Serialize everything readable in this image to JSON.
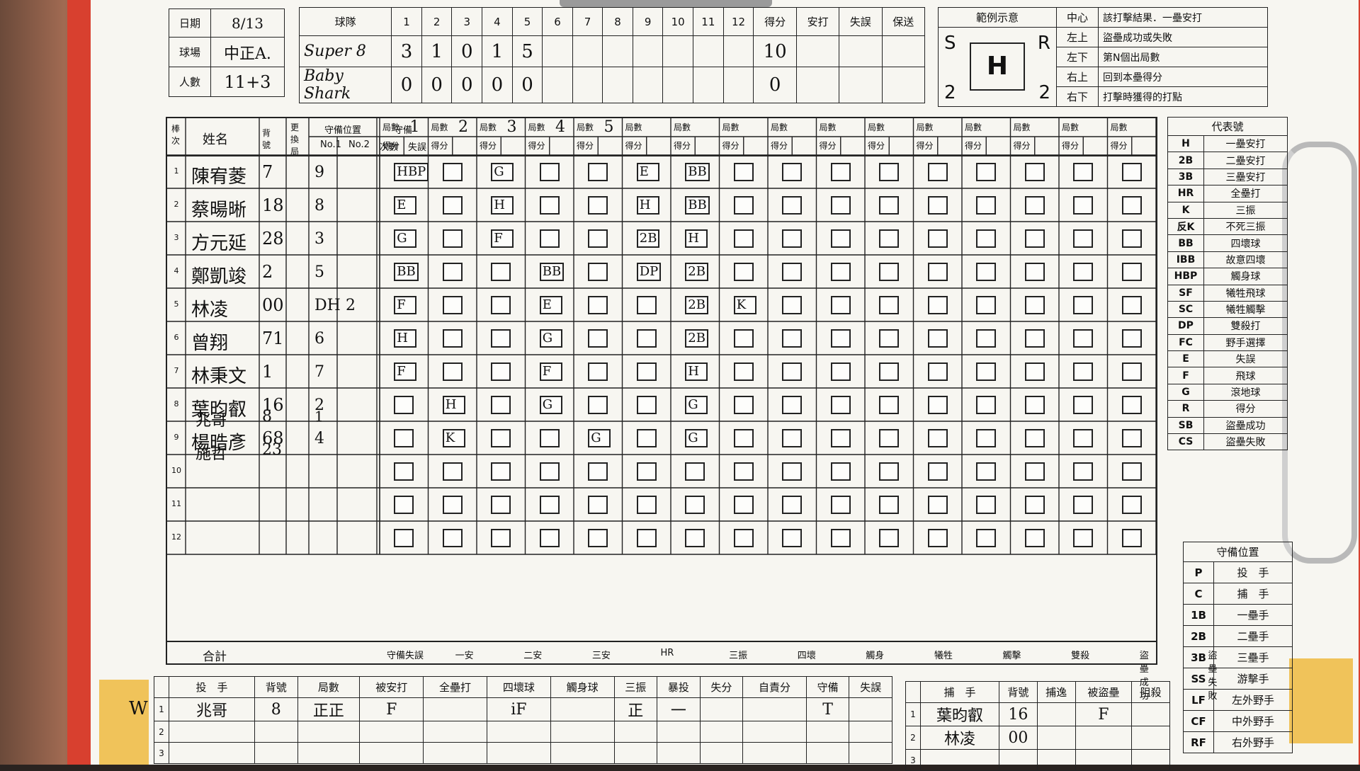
{
  "header": {
    "date_label": "日期",
    "date_value": "8/13",
    "venue_label": "球場",
    "venue_value": "中正A.",
    "people_label": "人數",
    "people_value": "11+3"
  },
  "linescore": {
    "team_label": "球隊",
    "innings": [
      "1",
      "2",
      "3",
      "4",
      "5",
      "6",
      "7",
      "8",
      "9",
      "10",
      "11",
      "12"
    ],
    "extra_headers": [
      "得分",
      "安打",
      "失誤",
      "保送"
    ],
    "teams": [
      {
        "name": "Super 8",
        "runs": [
          "3",
          "1",
          "0",
          "1",
          "5"
        ],
        "total": "10"
      },
      {
        "name": "Baby Shark",
        "runs": [
          "0",
          "0",
          "0",
          "0",
          "0"
        ],
        "total": "0"
      }
    ]
  },
  "legend": {
    "title": "範例示意",
    "sample": {
      "s": "S",
      "r": "R",
      "h": "H",
      "bl": "2",
      "br": "2"
    },
    "rows": [
      {
        "k": "中心",
        "v": "該打擊結果．一壘安打"
      },
      {
        "k": "左上",
        "v": "盜壘成功或失敗"
      },
      {
        "k": "左下",
        "v": "第N個出局數"
      },
      {
        "k": "右上",
        "v": "回到本壘得分"
      },
      {
        "k": "右下",
        "v": "打擊時獲得的打點"
      }
    ]
  },
  "lineup_header": {
    "order": "棒次",
    "name": "姓名",
    "number": "背號",
    "sub": "更換局",
    "pos": "守備位置",
    "pos1": "No.1",
    "pos2": "No.2",
    "def": "守備",
    "def_count": "次數",
    "def_err": "失誤",
    "inning_label": "局數",
    "score_label": "得分"
  },
  "players": [
    {
      "order": "1",
      "name": "陳宥菱",
      "num": "7",
      "pos": "9",
      "pos2": ""
    },
    {
      "order": "2",
      "name": "蔡暘晰",
      "num": "18",
      "pos": "8",
      "pos2": ""
    },
    {
      "order": "3",
      "name": "方元延",
      "num": "28",
      "pos": "3",
      "pos2": ""
    },
    {
      "order": "4",
      "name": "鄭凱竣",
      "num": "2",
      "pos": "5",
      "pos2": ""
    },
    {
      "order": "5",
      "name": "林凌",
      "num": "00",
      "pos": "DH",
      "pos2": "2"
    },
    {
      "order": "6",
      "name": "曾翔",
      "num": "71",
      "pos": "6",
      "pos2": ""
    },
    {
      "order": "7",
      "name": "林秉文",
      "num": "1",
      "pos": "7",
      "pos2": ""
    },
    {
      "order": "8",
      "name": "葉昀叡",
      "num": "16",
      "pos": "2",
      "pos2": ""
    },
    {
      "order": "9",
      "name": "楊晧彥",
      "num": "68",
      "pos": "4",
      "pos2": ""
    },
    {
      "order": "10",
      "name": "",
      "num": "",
      "pos": "",
      "pos2": ""
    },
    {
      "order": "11",
      "name": "",
      "num": "",
      "pos": "",
      "pos2": ""
    },
    {
      "order": "12",
      "name": "",
      "num": "",
      "pos": "",
      "pos2": ""
    }
  ],
  "subs": [
    {
      "name": "兆哥",
      "num": "8",
      "pos": "1"
    },
    {
      "name": "施哲",
      "num": "23",
      "pos": ""
    }
  ],
  "inning_marks": [
    "1",
    "2",
    "3",
    "4",
    "5"
  ],
  "results": [
    {
      "row": 0,
      "col": 0,
      "t": "HBP"
    },
    {
      "row": 0,
      "col": 2,
      "t": "G"
    },
    {
      "row": 0,
      "col": 5,
      "t": "E"
    },
    {
      "row": 0,
      "col": 6,
      "t": "BB"
    },
    {
      "row": 1,
      "col": 0,
      "t": "E"
    },
    {
      "row": 1,
      "col": 2,
      "t": "H"
    },
    {
      "row": 1,
      "col": 5,
      "t": "H"
    },
    {
      "row": 1,
      "col": 6,
      "t": "BB"
    },
    {
      "row": 2,
      "col": 0,
      "t": "G"
    },
    {
      "row": 2,
      "col": 2,
      "t": "F"
    },
    {
      "row": 2,
      "col": 5,
      "t": "2B"
    },
    {
      "row": 2,
      "col": 6,
      "t": "H"
    },
    {
      "row": 3,
      "col": 0,
      "t": "BB"
    },
    {
      "row": 3,
      "col": 3,
      "t": "BB"
    },
    {
      "row": 3,
      "col": 5,
      "t": "DP"
    },
    {
      "row": 3,
      "col": 6,
      "t": "2B"
    },
    {
      "row": 4,
      "col": 0,
      "t": "F"
    },
    {
      "row": 4,
      "col": 3,
      "t": "E"
    },
    {
      "row": 4,
      "col": 6,
      "t": "2B"
    },
    {
      "row": 4,
      "col": 7,
      "t": "K"
    },
    {
      "row": 5,
      "col": 0,
      "t": "H"
    },
    {
      "row": 5,
      "col": 3,
      "t": "G"
    },
    {
      "row": 5,
      "col": 6,
      "t": "2B"
    },
    {
      "row": 6,
      "col": 0,
      "t": "F"
    },
    {
      "row": 6,
      "col": 3,
      "t": "F"
    },
    {
      "row": 6,
      "col": 6,
      "t": "H"
    },
    {
      "row": 7,
      "col": 1,
      "t": "H"
    },
    {
      "row": 7,
      "col": 3,
      "t": "G"
    },
    {
      "row": 7,
      "col": 6,
      "t": "G"
    },
    {
      "row": 8,
      "col": 1,
      "t": "K"
    },
    {
      "row": 8,
      "col": 4,
      "t": "G"
    },
    {
      "row": 8,
      "col": 6,
      "t": "G"
    }
  ],
  "totals": {
    "label": "合計",
    "items": [
      "守備失誤",
      "一安",
      "二安",
      "三安",
      "HR",
      "三振",
      "四壞",
      "觸身",
      "犧牲",
      "觸擊",
      "雙殺",
      "盜壘成功",
      "盜壘失敗"
    ]
  },
  "codes": {
    "title": "代表號",
    "rows": [
      {
        "k": "H",
        "v": "一壘安打"
      },
      {
        "k": "2B",
        "v": "二壘安打"
      },
      {
        "k": "3B",
        "v": "三壘安打"
      },
      {
        "k": "HR",
        "v": "全壘打"
      },
      {
        "k": "K",
        "v": "三振"
      },
      {
        "k": "反K",
        "v": "不死三振"
      },
      {
        "k": "BB",
        "v": "四壞球"
      },
      {
        "k": "IBB",
        "v": "故意四壞"
      },
      {
        "k": "HBP",
        "v": "觸身球"
      },
      {
        "k": "SF",
        "v": "犧牲飛球"
      },
      {
        "k": "SC",
        "v": "犧牲觸擊"
      },
      {
        "k": "DP",
        "v": "雙殺打"
      },
      {
        "k": "FC",
        "v": "野手選擇"
      },
      {
        "k": "E",
        "v": "失誤"
      },
      {
        "k": "F",
        "v": "飛球"
      },
      {
        "k": "G",
        "v": "滾地球"
      },
      {
        "k": "R",
        "v": "得分"
      },
      {
        "k": "SB",
        "v": "盜壘成功"
      },
      {
        "k": "CS",
        "v": "盜壘失敗"
      }
    ]
  },
  "positions": {
    "title": "守備位置",
    "rows": [
      {
        "k": "P",
        "v": "投　手"
      },
      {
        "k": "C",
        "v": "捕　手"
      },
      {
        "k": "1B",
        "v": "一壘手"
      },
      {
        "k": "2B",
        "v": "二壘手"
      },
      {
        "k": "3B",
        "v": "三壘手"
      },
      {
        "k": "SS",
        "v": "游擊手"
      },
      {
        "k": "LF",
        "v": "左外野手"
      },
      {
        "k": "CF",
        "v": "中外野手"
      },
      {
        "k": "RF",
        "v": "右外野手"
      }
    ]
  },
  "pitching": {
    "mark": "W",
    "headers": [
      "投　手",
      "背號",
      "局數",
      "被安打",
      "全壘打",
      "四壞球",
      "觸身球",
      "三振",
      "暴投",
      "失分",
      "自責分",
      "守備",
      "失誤"
    ],
    "rows": [
      {
        "n": "1",
        "name": "兆哥",
        "num": "8",
        "ip": "正正",
        "h": "F",
        "bb": "iF",
        "k": "正",
        "wp": "一",
        "def": "T"
      }
    ]
  },
  "catching": {
    "headers": [
      "捕　手",
      "背號",
      "捕逸",
      "被盜壘",
      "阻殺"
    ],
    "rows": [
      {
        "n": "1",
        "name": "葉昀叡",
        "num": "16",
        "sb": "F"
      },
      {
        "n": "2",
        "name": "林凌",
        "num": "00",
        "sb": ""
      }
    ]
  }
}
